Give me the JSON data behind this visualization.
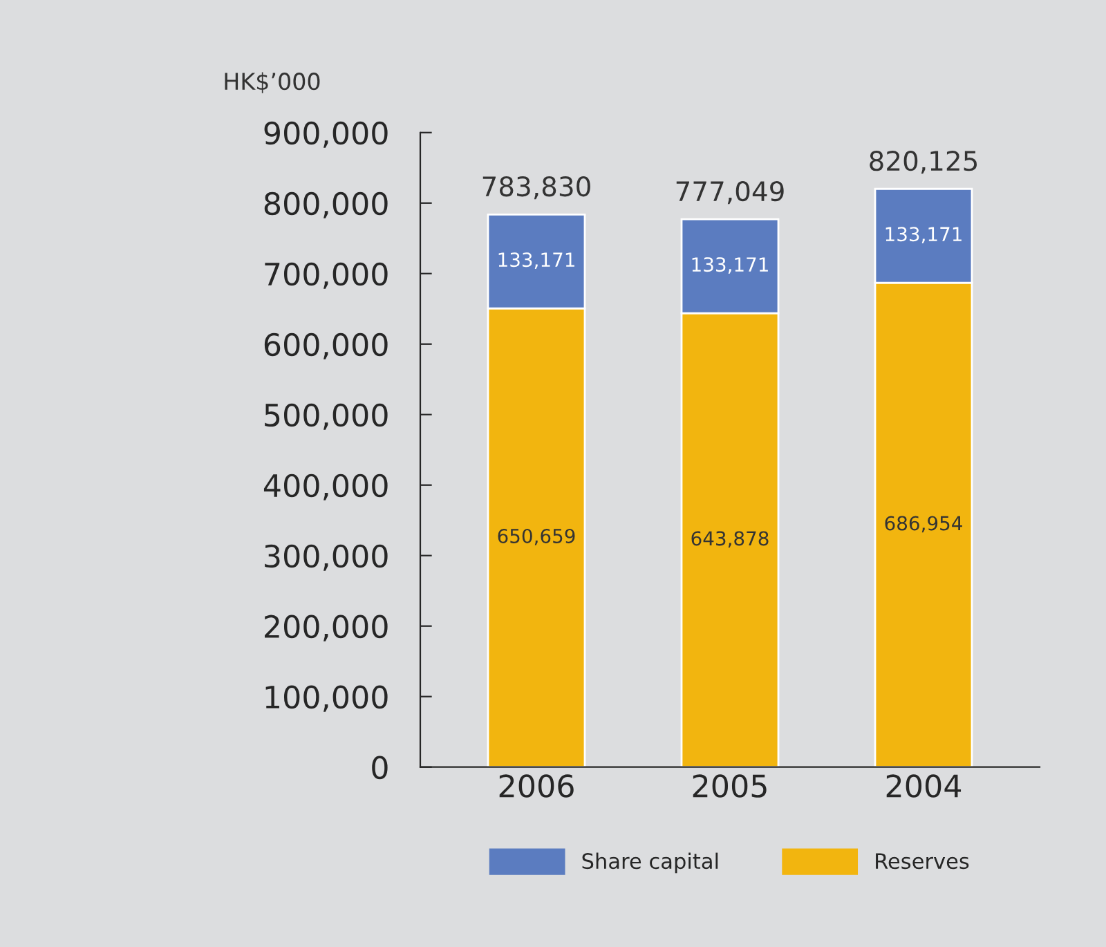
{
  "chart_data": {
    "type": "bar",
    "stacked": true,
    "ylabel": "HK$’000",
    "categories": [
      "2006",
      "2005",
      "2004"
    ],
    "series": [
      {
        "name": "Reserves",
        "color": "#f2b50f",
        "values": [
          650659,
          643878,
          686954
        ],
        "value_labels": [
          "650,659",
          "643,878",
          "686,954"
        ]
      },
      {
        "name": "Share capital",
        "color": "#5b7cc0",
        "values": [
          133171,
          133171,
          133171
        ],
        "value_labels": [
          "133,171",
          "133,171",
          "133,171"
        ]
      }
    ],
    "totals": [
      "783,830",
      "777,049",
      "820,125"
    ],
    "ylim": [
      0,
      900000
    ],
    "yticks": [
      {
        "value": 0,
        "label": "0"
      },
      {
        "value": 100000,
        "label": "100,000"
      },
      {
        "value": 200000,
        "label": "200,000"
      },
      {
        "value": 300000,
        "label": "300,000"
      },
      {
        "value": 400000,
        "label": "400,000"
      },
      {
        "value": 500000,
        "label": "500,000"
      },
      {
        "value": 600000,
        "label": "600,000"
      },
      {
        "value": 700000,
        "label": "700,000"
      },
      {
        "value": 800000,
        "label": "800,000"
      },
      {
        "value": 900000,
        "label": "900,000"
      }
    ],
    "grid": false,
    "legend": "bottom"
  }
}
